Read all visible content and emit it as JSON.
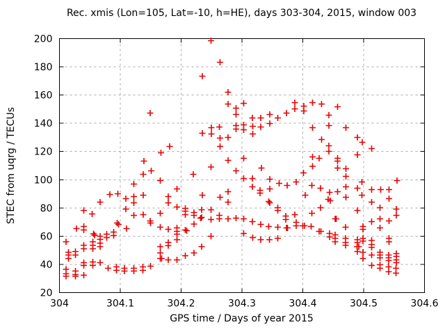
{
  "chart_data": {
    "type": "scatter",
    "title": "Rec. xmis (Lon=105, Lat=-10, h=HE), days 303-304, 2015, window 003",
    "xlabel": "GPS time / Days of year 2015",
    "ylabel": "STEC from uqrg / TECUs",
    "xlim": [
      304,
      304.6
    ],
    "ylim": [
      20,
      200
    ],
    "grid": true,
    "legend": "none",
    "marker": "plus",
    "marker_color": "#e60000",
    "grid_color": "#aaaaaa",
    "axis_color": "#000000",
    "xticks": [
      {
        "v": 304.0,
        "label": "304"
      },
      {
        "v": 304.1,
        "label": "304.1"
      },
      {
        "v": 304.2,
        "label": "304.2"
      },
      {
        "v": 304.3,
        "label": "304.3"
      },
      {
        "v": 304.4,
        "label": "304.4"
      },
      {
        "v": 304.5,
        "label": "304.5"
      },
      {
        "v": 304.6,
        "label": "304.6"
      }
    ],
    "yticks": [
      {
        "v": 20,
        "label": "20"
      },
      {
        "v": 40,
        "label": "40"
      },
      {
        "v": 60,
        "label": "60"
      },
      {
        "v": 80,
        "label": "80"
      },
      {
        "v": 100,
        "label": "100"
      },
      {
        "v": 120,
        "label": "120"
      },
      {
        "v": 140,
        "label": "140"
      },
      {
        "v": 160,
        "label": "160"
      },
      {
        "v": 180,
        "label": "180"
      },
      {
        "v": 200,
        "label": "200"
      }
    ],
    "points": [
      [
        304.011,
        56.0
      ],
      [
        304.011,
        36.4
      ],
      [
        304.011,
        33.4
      ],
      [
        304.011,
        31.5
      ],
      [
        304.015,
        48.6
      ],
      [
        304.015,
        46.6
      ],
      [
        304.015,
        44.2
      ],
      [
        304.026,
        49.1
      ],
      [
        304.026,
        46.6
      ],
      [
        304.026,
        35.4
      ],
      [
        304.026,
        32.9
      ],
      [
        304.026,
        31.5
      ],
      [
        304.028,
        65.4
      ],
      [
        304.04,
        78.2
      ],
      [
        304.04,
        66.9
      ],
      [
        304.04,
        64.4
      ],
      [
        304.04,
        53.6
      ],
      [
        304.04,
        51.1
      ],
      [
        304.04,
        41.2
      ],
      [
        304.04,
        39.3
      ],
      [
        304.04,
        32.4
      ],
      [
        304.054,
        75.7
      ],
      [
        304.055,
        56.0
      ],
      [
        304.055,
        53.6
      ],
      [
        304.055,
        51.1
      ],
      [
        304.056,
        61.7
      ],
      [
        304.058,
        60.7
      ],
      [
        304.055,
        41.7
      ],
      [
        304.055,
        39.3
      ],
      [
        304.067,
        84.1
      ],
      [
        304.067,
        59.9
      ],
      [
        304.067,
        57.8
      ],
      [
        304.067,
        55.1
      ],
      [
        304.067,
        52.6
      ],
      [
        304.067,
        41.2
      ],
      [
        304.078,
        61.4
      ],
      [
        304.078,
        59.0
      ],
      [
        304.08,
        37.3
      ],
      [
        304.083,
        89.5
      ],
      [
        304.089,
        62.9
      ],
      [
        304.089,
        60.4
      ],
      [
        304.094,
        38.3
      ],
      [
        304.094,
        35.9
      ],
      [
        304.095,
        69.3
      ],
      [
        304.096,
        90.0
      ],
      [
        304.097,
        68.3
      ],
      [
        304.107,
        37.3
      ],
      [
        304.107,
        35.4
      ],
      [
        304.109,
        86.5
      ],
      [
        304.109,
        79.2
      ],
      [
        304.11,
        65.4
      ],
      [
        304.122,
        96.9
      ],
      [
        304.122,
        88.0
      ],
      [
        304.122,
        83.6
      ],
      [
        304.122,
        74.7
      ],
      [
        304.122,
        37.3
      ],
      [
        304.122,
        35.4
      ],
      [
        304.137,
        38.3
      ],
      [
        304.137,
        35.9
      ],
      [
        304.138,
        103.8
      ],
      [
        304.138,
        89.0
      ],
      [
        304.138,
        75.2
      ],
      [
        304.139,
        113.2
      ],
      [
        304.149,
        147.2
      ],
      [
        304.149,
        70.8
      ],
      [
        304.15,
        69.3
      ],
      [
        304.15,
        38.8
      ],
      [
        304.151,
        106.3
      ],
      [
        304.166,
        99.4
      ],
      [
        304.166,
        76.2
      ],
      [
        304.166,
        66.4
      ],
      [
        304.166,
        52.5
      ],
      [
        304.166,
        48.1
      ],
      [
        304.166,
        44.2
      ],
      [
        304.167,
        119.1
      ],
      [
        304.168,
        44.2
      ],
      [
        304.179,
        88.0
      ],
      [
        304.179,
        83.6
      ],
      [
        304.179,
        65.0
      ],
      [
        304.179,
        55.6
      ],
      [
        304.179,
        53.3
      ],
      [
        304.179,
        43.2
      ],
      [
        304.181,
        123.6
      ],
      [
        304.193,
        93.5
      ],
      [
        304.193,
        80.7
      ],
      [
        304.193,
        65.9
      ],
      [
        304.193,
        63.4
      ],
      [
        304.193,
        61.4
      ],
      [
        304.193,
        57.5
      ],
      [
        304.193,
        43.2
      ],
      [
        304.207,
        79.7
      ],
      [
        304.207,
        77.7
      ],
      [
        304.207,
        75.2
      ],
      [
        304.207,
        64.5
      ],
      [
        304.207,
        46.1
      ],
      [
        304.209,
        63.9
      ],
      [
        304.22,
        103.8
      ],
      [
        304.221,
        76.7
      ],
      [
        304.221,
        74.7
      ],
      [
        304.221,
        68.5
      ],
      [
        304.221,
        48.1
      ],
      [
        304.232,
        72.8
      ],
      [
        304.234,
        78.7
      ],
      [
        304.234,
        73.3
      ],
      [
        304.234,
        52.5
      ],
      [
        304.235,
        173.4
      ],
      [
        304.235,
        132.9
      ],
      [
        304.235,
        89.0
      ],
      [
        304.249,
        198.5
      ],
      [
        304.249,
        109.0
      ],
      [
        304.249,
        78.7
      ],
      [
        304.249,
        71.8
      ],
      [
        304.249,
        60.0
      ],
      [
        304.25,
        136.9
      ],
      [
        304.25,
        132.4
      ],
      [
        304.263,
        137.4
      ],
      [
        304.263,
        74.7
      ],
      [
        304.263,
        72.3
      ],
      [
        304.264,
        183.2
      ],
      [
        304.264,
        129.5
      ],
      [
        304.264,
        123.6
      ],
      [
        304.264,
        87.5
      ],
      [
        304.277,
        162.0
      ],
      [
        304.277,
        153.6
      ],
      [
        304.277,
        130.0
      ],
      [
        304.277,
        113.7
      ],
      [
        304.277,
        91.5
      ],
      [
        304.277,
        84.1
      ],
      [
        304.277,
        72.3
      ],
      [
        304.29,
        150.7
      ],
      [
        304.29,
        146.2
      ],
      [
        304.29,
        138.4
      ],
      [
        304.29,
        135.9
      ],
      [
        304.29,
        106.3
      ],
      [
        304.29,
        72.8
      ],
      [
        304.303,
        154.1
      ],
      [
        304.303,
        138.9
      ],
      [
        304.303,
        135.4
      ],
      [
        304.303,
        115.2
      ],
      [
        304.303,
        100.9
      ],
      [
        304.303,
        72.3
      ],
      [
        304.303,
        61.9
      ],
      [
        304.317,
        143.8
      ],
      [
        304.317,
        100.9
      ],
      [
        304.317,
        95.0
      ],
      [
        304.317,
        70.3
      ],
      [
        304.318,
        137.9
      ],
      [
        304.318,
        132.4
      ],
      [
        304.318,
        59.0
      ],
      [
        304.33,
        92.5
      ],
      [
        304.33,
        90.5
      ],
      [
        304.331,
        143.8
      ],
      [
        304.331,
        137.4
      ],
      [
        304.331,
        68.3
      ],
      [
        304.331,
        57.5
      ],
      [
        304.332,
        108.3
      ],
      [
        304.344,
        84.6
      ],
      [
        304.344,
        66.9
      ],
      [
        304.345,
        57.5
      ],
      [
        304.346,
        146.2
      ],
      [
        304.346,
        139.9
      ],
      [
        304.346,
        100.4
      ],
      [
        304.346,
        93.5
      ],
      [
        304.346,
        83.6
      ],
      [
        304.359,
        143.8
      ],
      [
        304.359,
        80.2
      ],
      [
        304.359,
        78.2
      ],
      [
        304.359,
        66.4
      ],
      [
        304.359,
        58.5
      ],
      [
        304.361,
        97.4
      ],
      [
        304.372,
        74.2
      ],
      [
        304.372,
        71.8
      ],
      [
        304.373,
        147.2
      ],
      [
        304.373,
        65.9
      ],
      [
        304.374,
        95.9
      ],
      [
        304.375,
        65.9
      ],
      [
        304.387,
        154.6
      ],
      [
        304.387,
        150.2
      ],
      [
        304.387,
        75.2
      ],
      [
        304.389,
        98.4
      ],
      [
        304.389,
        69.8
      ],
      [
        304.389,
        67.4
      ],
      [
        304.4,
        67.4
      ],
      [
        304.401,
        104.8
      ],
      [
        304.402,
        152.2
      ],
      [
        304.402,
        148.7
      ],
      [
        304.403,
        67.4
      ],
      [
        304.404,
        89.0
      ],
      [
        304.414,
        66.9
      ],
      [
        304.415,
        95.9
      ],
      [
        304.415,
        76.2
      ],
      [
        304.416,
        154.6
      ],
      [
        304.416,
        136.9
      ],
      [
        304.416,
        116.2
      ],
      [
        304.416,
        109.5
      ],
      [
        304.427,
        115.2
      ],
      [
        304.427,
        63.4
      ],
      [
        304.429,
        94.0
      ],
      [
        304.429,
        80.2
      ],
      [
        304.43,
        63.4
      ],
      [
        304.431,
        153.6
      ],
      [
        304.431,
        128.5
      ],
      [
        304.442,
        86.1
      ],
      [
        304.443,
        145.8
      ],
      [
        304.443,
        138.4
      ],
      [
        304.443,
        124.1
      ],
      [
        304.443,
        120.1
      ],
      [
        304.444,
        91.0
      ],
      [
        304.444,
        61.9
      ],
      [
        304.444,
        59.5
      ],
      [
        304.445,
        85.1
      ],
      [
        304.453,
        72.3
      ],
      [
        304.453,
        61.0
      ],
      [
        304.453,
        58.5
      ],
      [
        304.453,
        56.0
      ],
      [
        304.455,
        72.3
      ],
      [
        304.457,
        151.7
      ],
      [
        304.457,
        115.2
      ],
      [
        304.457,
        113.2
      ],
      [
        304.457,
        108.3
      ],
      [
        304.457,
        91.5
      ],
      [
        304.47,
        66.4
      ],
      [
        304.47,
        58.5
      ],
      [
        304.47,
        55.6
      ],
      [
        304.47,
        53.6
      ],
      [
        304.471,
        136.9
      ],
      [
        304.471,
        107.8
      ],
      [
        304.471,
        102.4
      ],
      [
        304.471,
        95.0
      ],
      [
        304.471,
        87.5
      ],
      [
        304.489,
        52.6
      ],
      [
        304.49,
        130.0
      ],
      [
        304.49,
        117.7
      ],
      [
        304.49,
        94.0
      ],
      [
        304.49,
        78.2
      ],
      [
        304.49,
        57.5
      ],
      [
        304.49,
        55.6
      ],
      [
        304.49,
        49.1
      ],
      [
        304.492,
        52.6
      ],
      [
        304.497,
        98.4
      ],
      [
        304.497,
        89.0
      ],
      [
        304.498,
        126.5
      ],
      [
        304.499,
        66.9
      ],
      [
        304.499,
        64.9
      ],
      [
        304.499,
        58.5
      ],
      [
        304.499,
        56.5
      ],
      [
        304.499,
        48.6
      ],
      [
        304.499,
        44.2
      ],
      [
        304.513,
        122.1
      ],
      [
        304.513,
        93.0
      ],
      [
        304.513,
        84.1
      ],
      [
        304.513,
        70.3
      ],
      [
        304.513,
        57.0
      ],
      [
        304.513,
        54.1
      ],
      [
        304.513,
        52.1
      ],
      [
        304.513,
        46.6
      ],
      [
        304.513,
        39.3
      ],
      [
        304.527,
        80.2
      ],
      [
        304.527,
        72.3
      ],
      [
        304.527,
        65.9
      ],
      [
        304.527,
        48.6
      ],
      [
        304.527,
        46.6
      ],
      [
        304.527,
        44.7
      ],
      [
        304.527,
        39.8
      ],
      [
        304.527,
        37.3
      ],
      [
        304.528,
        93.0
      ],
      [
        304.541,
        46.6
      ],
      [
        304.541,
        44.7
      ],
      [
        304.541,
        42.7
      ],
      [
        304.541,
        38.3
      ],
      [
        304.541,
        34.9
      ],
      [
        304.542,
        93.0
      ],
      [
        304.542,
        86.6
      ],
      [
        304.542,
        70.8
      ],
      [
        304.542,
        58.5
      ],
      [
        304.542,
        56.0
      ],
      [
        304.553,
        37.3
      ],
      [
        304.553,
        33.9
      ],
      [
        304.554,
        79.2
      ],
      [
        304.554,
        74.7
      ],
      [
        304.554,
        47.6
      ],
      [
        304.554,
        45.6
      ],
      [
        304.554,
        43.2
      ],
      [
        304.554,
        41.2
      ],
      [
        304.555,
        99.4
      ]
    ]
  }
}
